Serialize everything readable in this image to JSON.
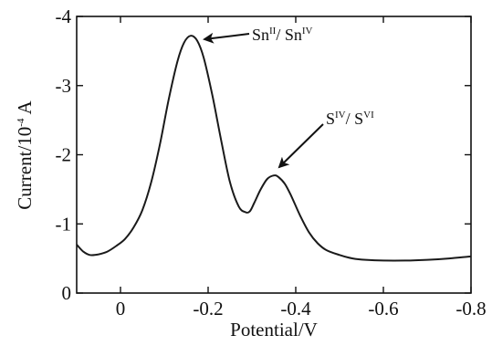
{
  "chart_data": {
    "type": "line",
    "xlabel": "Potential/V",
    "ylabel_parts": [
      "Current/10",
      "-4",
      " A"
    ],
    "xlim": [
      0.1,
      -0.8
    ],
    "ylim": [
      0,
      -4
    ],
    "x_ticks": [
      0,
      -0.2,
      -0.4,
      -0.6,
      -0.8
    ],
    "x_tick_labels": [
      "0",
      "-0.2",
      "-0.4",
      "-0.6",
      "-0.8"
    ],
    "y_ticks": [
      0,
      -1,
      -2,
      -3,
      -4
    ],
    "y_tick_labels": [
      "0",
      "-1",
      "-2",
      "-3",
      "-4"
    ],
    "grid": false,
    "legend": "none",
    "line_color": "#1a1a1a",
    "series": [
      {
        "x": [
          0.1,
          0.085,
          0.07,
          0.05,
          0.03,
          0.01,
          -0.01,
          -0.03,
          -0.05,
          -0.07,
          -0.09,
          -0.11,
          -0.13,
          -0.145,
          -0.16,
          -0.175,
          -0.19,
          -0.21,
          -0.23,
          -0.25,
          -0.27,
          -0.285,
          -0.295,
          -0.305,
          -0.32,
          -0.335,
          -0.35,
          -0.36,
          -0.375,
          -0.39,
          -0.41,
          -0.43,
          -0.45,
          -0.47,
          -0.5,
          -0.53,
          -0.56,
          -0.6,
          -0.65,
          -0.7,
          -0.75,
          -0.8
        ],
        "y": [
          -0.7,
          -0.6,
          -0.55,
          -0.56,
          -0.6,
          -0.68,
          -0.78,
          -0.95,
          -1.2,
          -1.6,
          -2.15,
          -2.8,
          -3.35,
          -3.62,
          -3.72,
          -3.65,
          -3.4,
          -2.85,
          -2.2,
          -1.6,
          -1.25,
          -1.17,
          -1.18,
          -1.3,
          -1.5,
          -1.65,
          -1.7,
          -1.68,
          -1.58,
          -1.4,
          -1.12,
          -0.88,
          -0.72,
          -0.62,
          -0.55,
          -0.5,
          -0.48,
          -0.47,
          -0.47,
          -0.48,
          -0.5,
          -0.53
        ]
      }
    ],
    "annotations": [
      {
        "base1": "Sn",
        "sup1": "II",
        "sep": "/ ",
        "base2": "Sn",
        "sup2": "IV",
        "x": -0.16,
        "y": -3.72
      },
      {
        "base1": "S",
        "sup1": "IV",
        "sep": "/ ",
        "base2": "S",
        "sup2": "VI",
        "x": -0.36,
        "y": -1.72
      }
    ]
  }
}
